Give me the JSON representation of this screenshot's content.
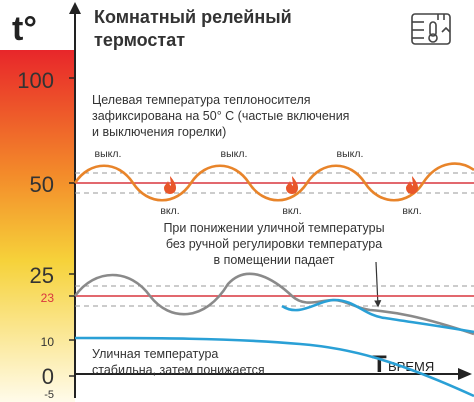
{
  "header": {
    "axis_unit": "t°",
    "title_line1": "Комнатный релейный",
    "title_line2": "термостат"
  },
  "scale": {
    "ticks": [
      "100",
      "50",
      "25",
      "23",
      "10",
      "0",
      "-5"
    ]
  },
  "annotations": {
    "target_line1": "Целевая температура теплоносителя",
    "target_line2": "зафиксирована на 50° С (частые включения",
    "target_line3": "и выключения горелки)",
    "drop_line1": "При понижении уличной температуры",
    "drop_line2": "без ручной регулировки температура",
    "drop_line3": "в помещении падает",
    "street_line1": "Уличная температура",
    "street_line2": "стабильна, затем понижается"
  },
  "burner_labels": {
    "off": "выкл.",
    "on": "вкл."
  },
  "time_axis": {
    "letter": "T",
    "label": "ВРЕМЯ"
  },
  "colors": {
    "coolant_curve": "#e8842a",
    "room_curve_stable": "#8a8a8a",
    "room_curve_drop": "#2aa0d6",
    "street_curve": "#2aa0d6",
    "setpoint_line": "#d9363e",
    "flame": "#e8562a",
    "gradient_top": "#e8262a",
    "gradient_mid": "#f6c72a",
    "gradient_bottom": "#fffbe6"
  }
}
